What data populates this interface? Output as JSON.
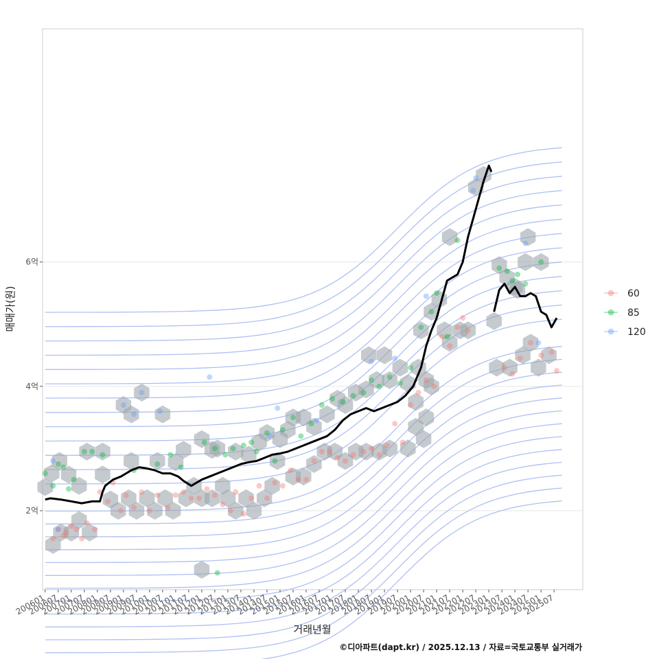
{
  "chart_data": {
    "type": "scatter",
    "title": "",
    "xlabel": "거래년월",
    "ylabel": "매매가(원)",
    "caption": "©디아파트(dapt.kr) / 2025.12.13 / 자료=국토교통부 실거래가",
    "x_range": [
      2005.9,
      2026.6
    ],
    "ylim": [
      0.73,
      9.75
    ],
    "y_ticks": [
      {
        "value": 2,
        "label": "2억"
      },
      {
        "value": 4,
        "label": "4억"
      },
      {
        "value": 6,
        "label": "6억"
      }
    ],
    "x_tick_labels": [
      "200601",
      "200607",
      "200701",
      "200707",
      "200801",
      "200807",
      "200901",
      "200907",
      "201001",
      "201007",
      "201101",
      "201107",
      "201201",
      "201207",
      "201301",
      "201307",
      "201401",
      "201407",
      "201501",
      "201507",
      "201601",
      "201607",
      "201701",
      "201707",
      "201801",
      "201807",
      "201901",
      "201907",
      "202001",
      "202007",
      "202101",
      "202107",
      "202201",
      "202207",
      "202301",
      "202307",
      "202401",
      "202407",
      "202501",
      "202507"
    ],
    "legend": [
      {
        "label": "60",
        "color": "#F8766D"
      },
      {
        "label": "85",
        "color": "#00BA38"
      },
      {
        "label": "120",
        "color": "#619CFF"
      }
    ],
    "hexbin_centers": [
      [
        2006.0,
        2.38
      ],
      [
        2006.25,
        2.6
      ],
      [
        2006.55,
        2.8
      ],
      [
        2006.9,
        2.58
      ],
      [
        2007.3,
        2.4
      ],
      [
        2006.3,
        1.45
      ],
      [
        2006.6,
        1.65
      ],
      [
        2007.0,
        1.65
      ],
      [
        2007.3,
        1.85
      ],
      [
        2007.7,
        1.65
      ],
      [
        2007.6,
        2.95
      ],
      [
        2008.2,
        2.95
      ],
      [
        2008.2,
        2.58
      ],
      [
        2008.5,
        2.18
      ],
      [
        2008.8,
        2.0
      ],
      [
        2009.2,
        2.2
      ],
      [
        2009.5,
        2.0
      ],
      [
        2009.9,
        2.2
      ],
      [
        2010.2,
        2.0
      ],
      [
        2010.6,
        2.2
      ],
      [
        2010.9,
        2.0
      ],
      [
        2009.0,
        3.7
      ],
      [
        2009.3,
        3.55
      ],
      [
        2009.7,
        3.9
      ],
      [
        2010.5,
        3.55
      ],
      [
        2009.3,
        2.8
      ],
      [
        2010.3,
        2.8
      ],
      [
        2011.0,
        2.78
      ],
      [
        2011.3,
        2.98
      ],
      [
        2011.4,
        2.2
      ],
      [
        2011.7,
        2.4
      ],
      [
        2012.0,
        2.2
      ],
      [
        2012.4,
        2.2
      ],
      [
        2012.8,
        2.4
      ],
      [
        2012.0,
        3.15
      ],
      [
        2012.4,
        2.98
      ],
      [
        2013.0,
        2.2
      ],
      [
        2013.3,
        2.0
      ],
      [
        2013.7,
        2.2
      ],
      [
        2014.0,
        2.0
      ],
      [
        2014.4,
        2.2
      ],
      [
        2014.7,
        2.4
      ],
      [
        2012.6,
        3.0
      ],
      [
        2013.3,
        2.95
      ],
      [
        2013.8,
        2.9
      ],
      [
        2014.2,
        3.1
      ],
      [
        2014.5,
        3.25
      ],
      [
        2015.0,
        3.15
      ],
      [
        2015.3,
        3.3
      ],
      [
        2014.9,
        2.8
      ],
      [
        2015.5,
        2.55
      ],
      [
        2015.9,
        2.55
      ],
      [
        2016.3,
        2.75
      ],
      [
        2016.7,
        2.95
      ],
      [
        2017.1,
        2.95
      ],
      [
        2017.5,
        2.8
      ],
      [
        2017.9,
        2.95
      ],
      [
        2018.3,
        2.95
      ],
      [
        2018.8,
        2.95
      ],
      [
        2019.2,
        3.0
      ],
      [
        2015.5,
        3.5
      ],
      [
        2015.9,
        3.5
      ],
      [
        2016.3,
        3.35
      ],
      [
        2016.8,
        3.55
      ],
      [
        2017.2,
        3.8
      ],
      [
        2017.5,
        3.7
      ],
      [
        2017.9,
        3.9
      ],
      [
        2018.3,
        3.95
      ],
      [
        2018.7,
        4.1
      ],
      [
        2018.4,
        4.5
      ],
      [
        2019.0,
        4.5
      ],
      [
        2019.2,
        4.1
      ],
      [
        2019.6,
        4.3
      ],
      [
        2019.9,
        4.05
      ],
      [
        2020.2,
        3.75
      ],
      [
        2020.6,
        3.5
      ],
      [
        2020.2,
        3.35
      ],
      [
        2020.5,
        3.15
      ],
      [
        2019.9,
        3.0
      ],
      [
        2020.3,
        4.3
      ],
      [
        2020.6,
        4.1
      ],
      [
        2020.8,
        4.0
      ],
      [
        2020.4,
        4.9
      ],
      [
        2020.8,
        5.2
      ],
      [
        2021.1,
        5.4
      ],
      [
        2021.3,
        4.9
      ],
      [
        2021.5,
        4.7
      ],
      [
        2021.9,
        4.9
      ],
      [
        2022.2,
        4.9
      ],
      [
        2021.5,
        6.4
      ],
      [
        2022.5,
        7.2
      ],
      [
        2022.8,
        7.4
      ],
      [
        2023.2,
        5.05
      ],
      [
        2023.4,
        5.95
      ],
      [
        2023.7,
        5.75
      ],
      [
        2024.1,
        5.55
      ],
      [
        2024.4,
        6.0
      ],
      [
        2024.0,
        5.6
      ],
      [
        2023.3,
        4.3
      ],
      [
        2023.8,
        4.3
      ],
      [
        2024.3,
        4.5
      ],
      [
        2024.6,
        4.7
      ],
      [
        2024.5,
        6.4
      ],
      [
        2025.0,
        6.0
      ],
      [
        2024.9,
        4.3
      ],
      [
        2025.3,
        4.5
      ],
      [
        2012.0,
        1.05
      ]
    ],
    "series": [
      {
        "name": "60",
        "x": [
          2006.3,
          2006.5,
          2006.7,
          2006.8,
          2007.0,
          2007.2,
          2007.4,
          2007.6,
          2007.9,
          2008.1,
          2008.4,
          2008.6,
          2008.9,
          2009.1,
          2009.4,
          2009.7,
          2010.0,
          2010.3,
          2010.7,
          2011.0,
          2011.3,
          2011.6,
          2011.9,
          2012.2,
          2012.5,
          2012.8,
          2013.1,
          2013.3,
          2013.6,
          2013.9,
          2014.2,
          2014.5,
          2014.8,
          2015.1,
          2015.4,
          2015.7,
          2016.0,
          2016.3,
          2016.6,
          2016.9,
          2017.2,
          2017.5,
          2017.8,
          2018.2,
          2018.5,
          2018.8,
          2019.1,
          2019.4,
          2019.7,
          2020.0,
          2020.3,
          2020.6,
          2020.9,
          2021.2,
          2021.5,
          2021.8,
          2022.0,
          2022.2,
          2023.6,
          2023.9,
          2024.2,
          2024.6,
          2025.0,
          2025.4,
          2025.6
        ],
        "y": [
          1.55,
          1.7,
          1.6,
          1.65,
          1.75,
          1.7,
          1.55,
          1.8,
          1.7,
          2.3,
          2.15,
          2.45,
          2.0,
          2.25,
          2.05,
          2.3,
          2.0,
          2.25,
          2.05,
          2.25,
          2.3,
          2.2,
          2.2,
          2.35,
          2.25,
          2.1,
          2.0,
          2.3,
          1.95,
          2.2,
          2.4,
          2.2,
          2.45,
          2.4,
          2.65,
          2.5,
          2.5,
          2.8,
          2.95,
          2.95,
          2.85,
          2.8,
          2.9,
          2.95,
          3.0,
          2.9,
          3.05,
          3.4,
          3.1,
          3.7,
          3.9,
          4.1,
          4.0,
          4.8,
          4.65,
          4.95,
          5.1,
          4.9,
          4.3,
          4.2,
          4.45,
          4.7,
          4.5,
          4.55,
          4.25
        ]
      },
      {
        "name": "85",
        "x": [
          2006.0,
          2006.3,
          2006.5,
          2006.7,
          2006.9,
          2007.1,
          2007.5,
          2007.8,
          2008.2,
          2009.4,
          2010.3,
          2010.8,
          2011.2,
          2012.1,
          2012.5,
          2012.6,
          2012.9,
          2013.2,
          2013.6,
          2013.9,
          2014.1,
          2014.5,
          2014.8,
          2015.1,
          2015.5,
          2015.8,
          2016.2,
          2016.6,
          2017.0,
          2017.4,
          2017.8,
          2018.2,
          2018.5,
          2018.8,
          2019.2,
          2019.6,
          2020.0,
          2020.4,
          2020.8,
          2021.0,
          2021.4,
          2021.8,
          2023.4,
          2023.7,
          2023.9,
          2024.1,
          2024.4,
          2025.0
        ],
        "y": [
          2.6,
          2.4,
          2.75,
          2.7,
          2.35,
          2.5,
          2.95,
          2.95,
          2.9,
          2.65,
          2.75,
          2.9,
          2.7,
          3.1,
          3.0,
          1.0,
          2.9,
          3.0,
          3.05,
          3.1,
          2.95,
          3.25,
          2.8,
          3.3,
          3.5,
          3.2,
          3.4,
          3.7,
          3.8,
          3.75,
          3.85,
          3.9,
          4.1,
          4.0,
          4.15,
          4.05,
          4.3,
          4.95,
          5.2,
          5.5,
          4.8,
          6.35,
          5.9,
          5.85,
          5.7,
          5.8,
          5.65,
          6.0
        ]
      },
      {
        "name": "120",
        "x": [
          2006.3,
          2006.5,
          2009.0,
          2009.4,
          2009.7,
          2010.4,
          2012.3,
          2014.6,
          2014.9,
          2016.4,
          2018.5,
          2019.4,
          2020.6,
          2022.4,
          2022.5,
          2024.4,
          2024.9
        ],
        "y": [
          2.8,
          1.7,
          3.7,
          3.55,
          3.9,
          3.6,
          4.15,
          3.2,
          3.65,
          3.45,
          4.4,
          4.45,
          5.45,
          7.15,
          7.35,
          6.3,
          4.7
        ]
      }
    ],
    "median_line": {
      "x": [
        2006.0,
        2006.2,
        2006.6,
        2007.0,
        2007.4,
        2007.8,
        2008.1,
        2008.2,
        2008.3,
        2008.6,
        2008.9,
        2009.1,
        2009.3,
        2009.6,
        2009.9,
        2010.2,
        2010.5,
        2010.8,
        2011.1,
        2011.3,
        2011.6,
        2011.8,
        2012.0,
        2012.3,
        2012.6,
        2012.9,
        2013.2,
        2013.5,
        2013.8,
        2014.1,
        2014.4,
        2014.7,
        2015.0,
        2015.3,
        2015.6,
        2015.9,
        2016.2,
        2016.5,
        2016.8,
        2017.1,
        2017.4,
        2017.7,
        2018.0,
        2018.3,
        2018.6,
        2018.9,
        2019.2,
        2019.5,
        2019.8,
        2020.1,
        2020.4,
        2020.6,
        2020.8,
        2021.0,
        2021.2,
        2021.4,
        2021.6,
        2021.8,
        2022.0,
        2022.2,
        2022.4,
        2022.6,
        2022.8,
        2023.0,
        2023.1
      ],
      "y": [
        2.18,
        2.2,
        2.18,
        2.15,
        2.12,
        2.15,
        2.15,
        2.3,
        2.4,
        2.5,
        2.55,
        2.6,
        2.65,
        2.7,
        2.68,
        2.65,
        2.6,
        2.6,
        2.55,
        2.48,
        2.4,
        2.45,
        2.5,
        2.55,
        2.6,
        2.65,
        2.7,
        2.75,
        2.78,
        2.8,
        2.85,
        2.9,
        2.92,
        2.95,
        3.0,
        3.05,
        3.1,
        3.15,
        3.2,
        3.3,
        3.45,
        3.55,
        3.6,
        3.65,
        3.6,
        3.65,
        3.7,
        3.75,
        3.85,
        4.0,
        4.3,
        4.65,
        4.9,
        5.1,
        5.4,
        5.7,
        5.75,
        5.8,
        6.0,
        6.4,
        6.7,
        7.0,
        7.3,
        7.55,
        7.45
      ]
    },
    "median_line_2": {
      "x": [
        2023.2,
        2023.4,
        2023.6,
        2023.8,
        2024.0,
        2024.2,
        2024.4,
        2024.6,
        2024.8,
        2025.0,
        2025.2,
        2025.4,
        2025.6
      ],
      "y": [
        5.2,
        5.55,
        5.65,
        5.5,
        5.6,
        5.45,
        5.45,
        5.5,
        5.45,
        5.2,
        5.15,
        4.95,
        5.1
      ]
    },
    "contour_peak": [
      2015.0,
      2.6
    ]
  }
}
